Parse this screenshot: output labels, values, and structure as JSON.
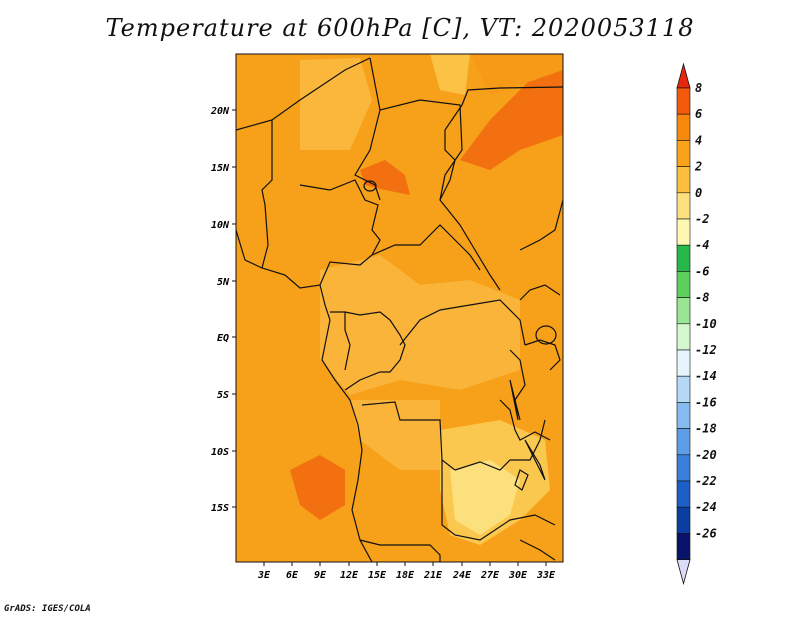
{
  "title": "Temperature at 600hPa [C], VT: 2020053118",
  "credit": "GrADS: IGES/COLA",
  "map": {
    "lat_labels": [
      "20N",
      "15N",
      "10N",
      "5N",
      "EQ",
      "5S",
      "10S",
      "15S"
    ],
    "lon_labels": [
      "3E",
      "6E",
      "9E",
      "12E",
      "15E",
      "18E",
      "21E",
      "24E",
      "27E",
      "30E",
      "33E"
    ]
  },
  "colorbar": {
    "labels": [
      "8",
      "6",
      "4",
      "2",
      "0",
      "-2",
      "-4",
      "-6",
      "-8",
      "-10",
      "-12",
      "-14",
      "-16",
      "-18",
      "-20",
      "-22",
      "-24",
      "-26"
    ],
    "colors": [
      "#e8270f",
      "#f25a0a",
      "#f7880c",
      "#f9a21a",
      "#fbbe3e",
      "#fde07e",
      "#fef7b4",
      "#26b848",
      "#5ccf5c",
      "#98e691",
      "#d4f7d0",
      "#e6f4fc",
      "#b4d8f6",
      "#84bcef",
      "#5c9fe6",
      "#3a80da",
      "#1e5ec7",
      "#0c3ea2",
      "#08146a",
      "#dcdcf8"
    ]
  }
}
